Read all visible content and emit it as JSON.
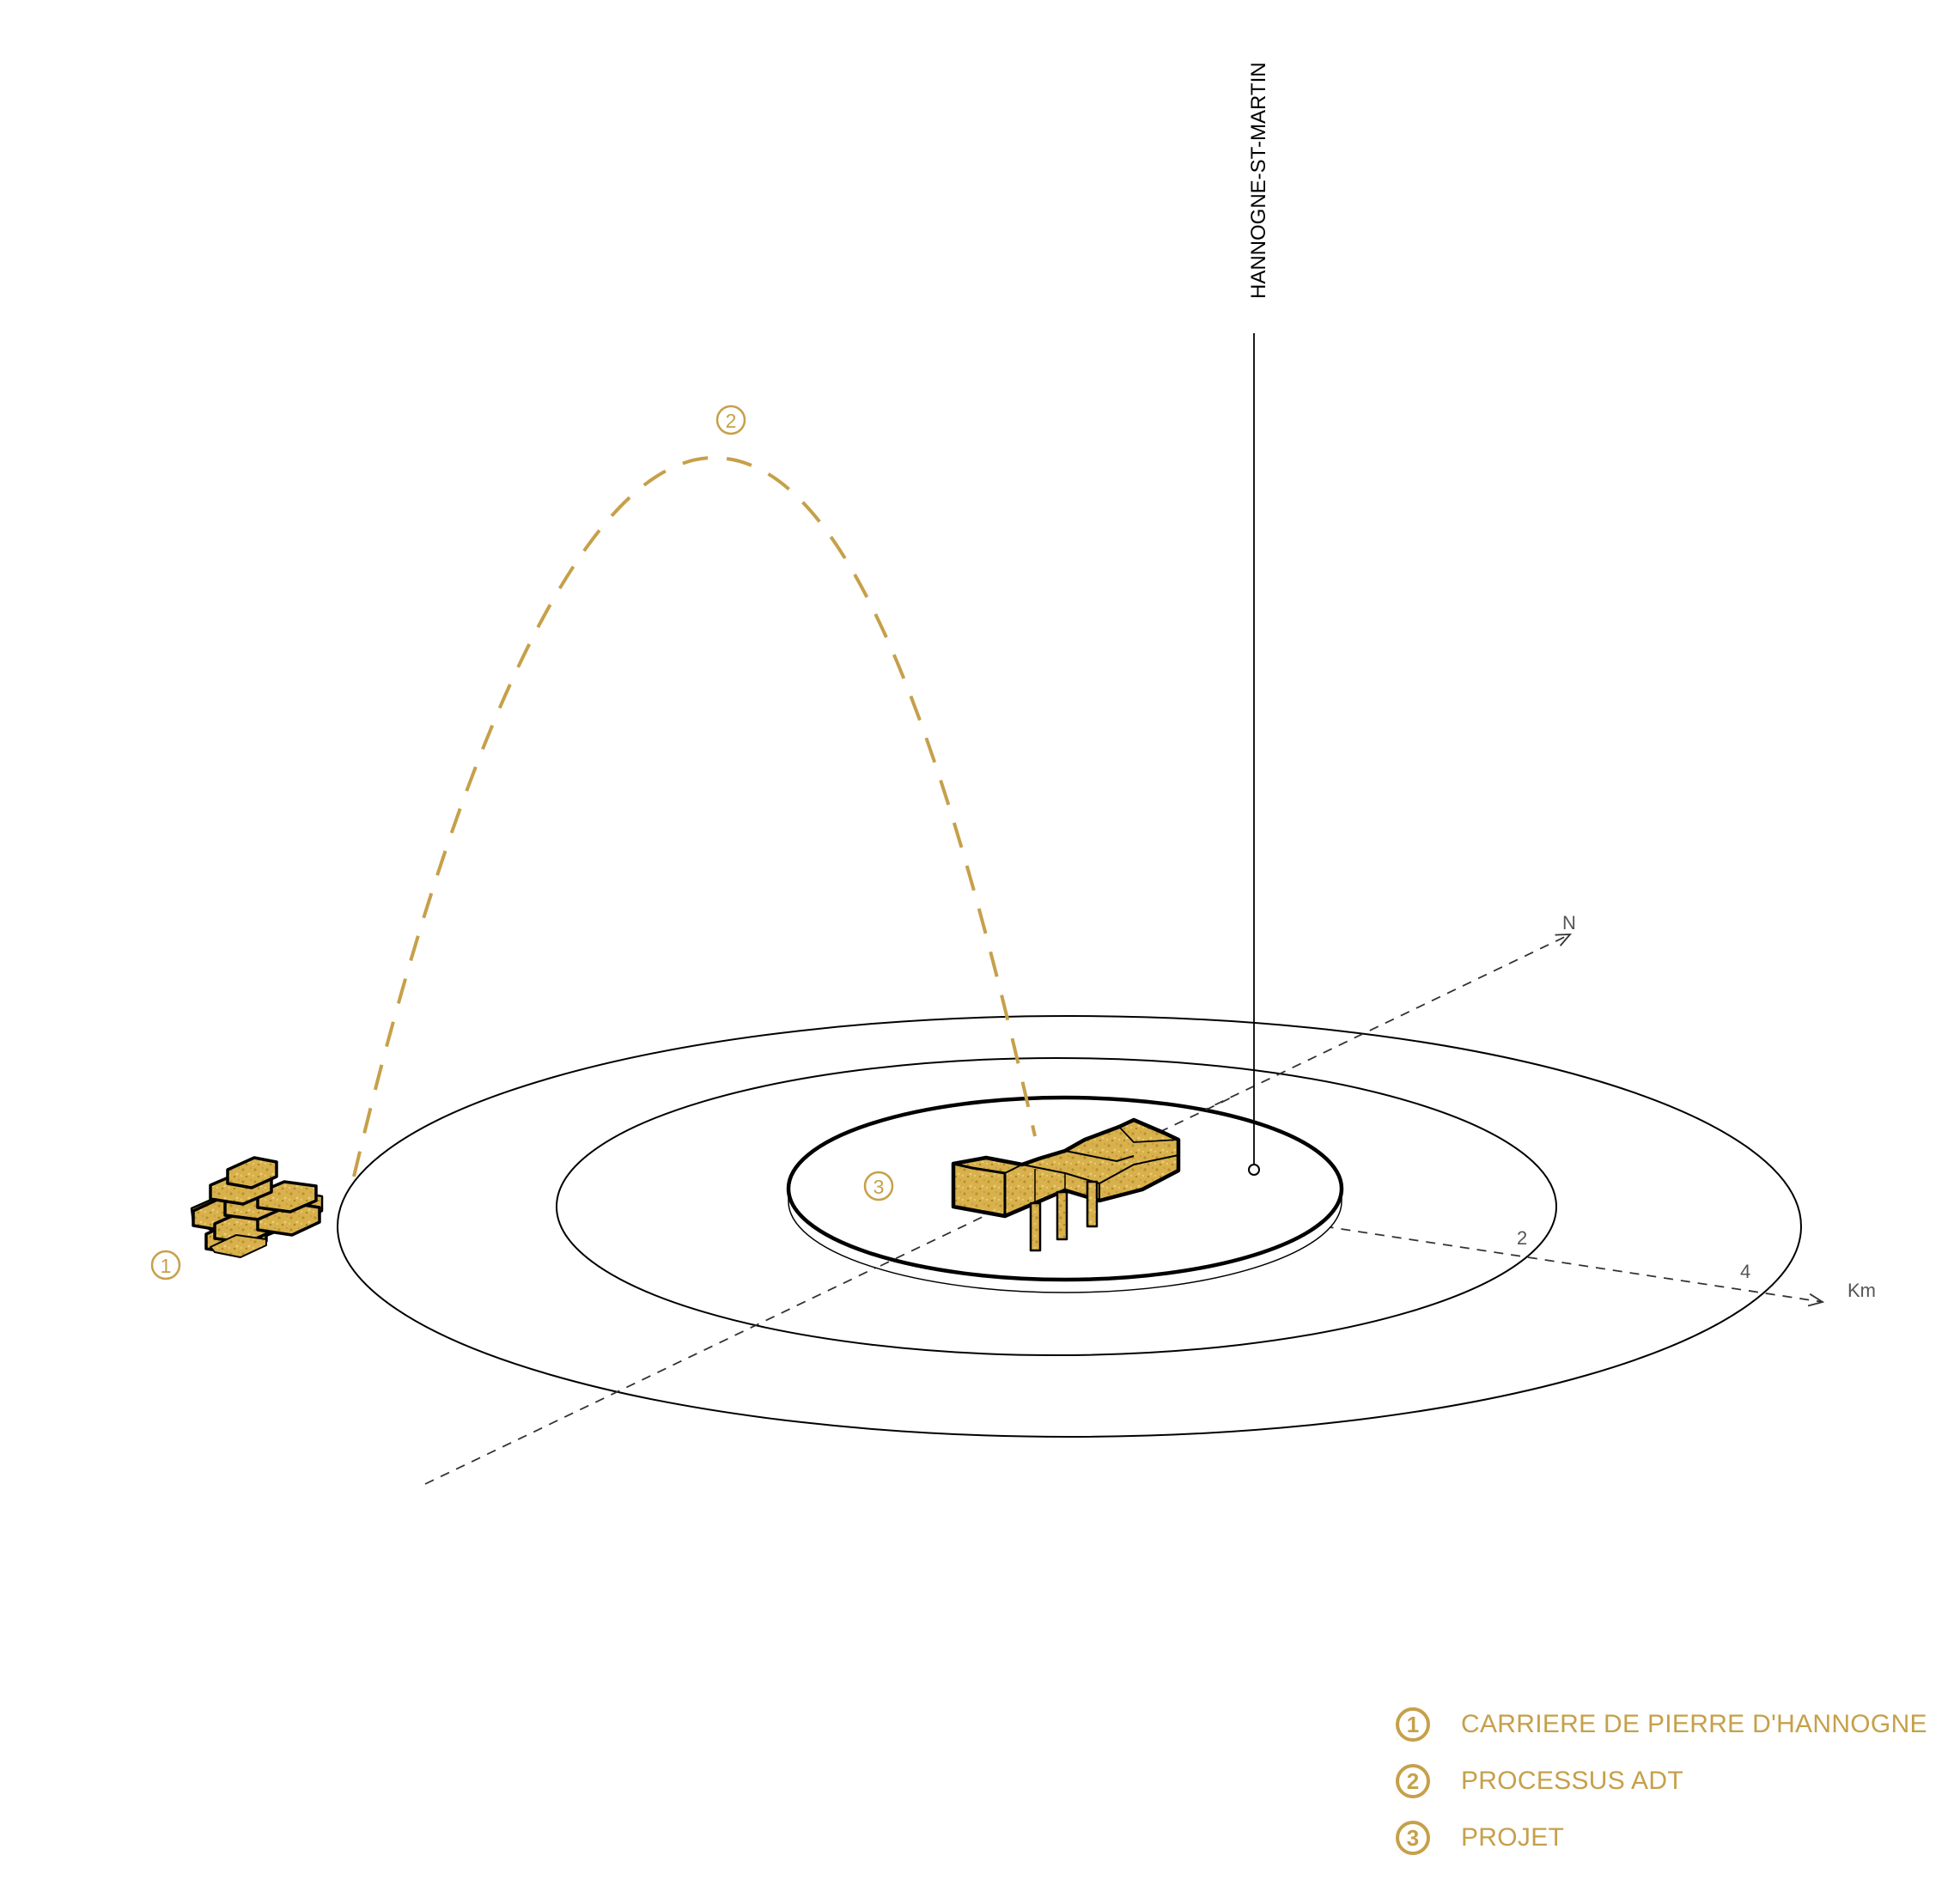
{
  "markers": {
    "quarry": "1",
    "process": "2",
    "project": "3"
  },
  "place_label": "HANNOGNE-ST-MARTIN",
  "axes": {
    "north_label": "N",
    "distance_unit": "Km",
    "distance_ticks": [
      "2",
      "4"
    ]
  },
  "legend": [
    {
      "number": "1",
      "label": "CARRIERE DE PIERRE D'HANNOGNE"
    },
    {
      "number": "2",
      "label": "PROCESSUS ADT"
    },
    {
      "number": "3",
      "label": "PROJET"
    }
  ],
  "colors": {
    "accent": "#c6a04a",
    "stone_fill": "#d8b14c",
    "line": "#000000",
    "dashed_axis": "#333333"
  }
}
